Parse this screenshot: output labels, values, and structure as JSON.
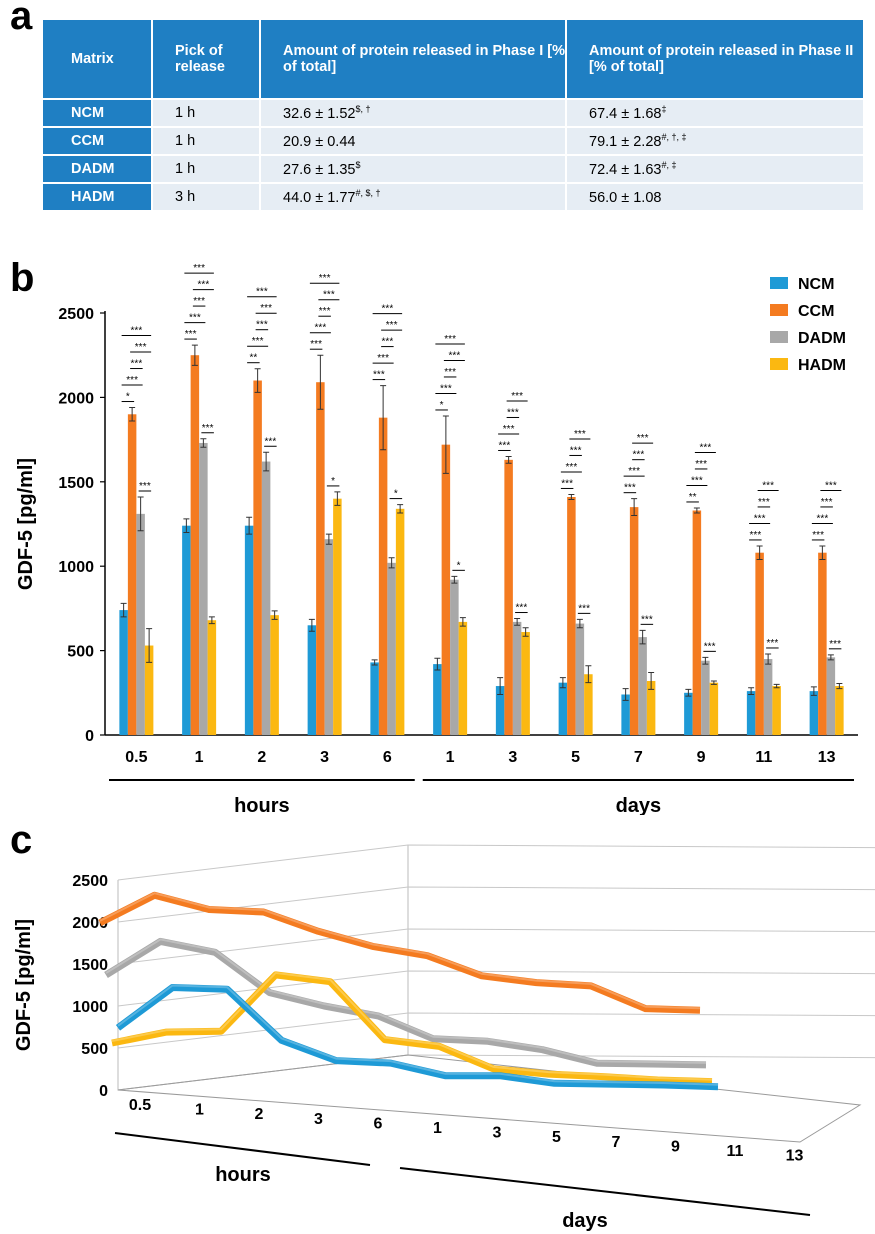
{
  "panels": {
    "a": "a",
    "b": "b",
    "c": "c"
  },
  "table": {
    "headers": [
      "Matrix",
      "Pick of release",
      "Amount of protein released in Phase I [% of total]",
      "Amount of protein released in Phase II [% of total]"
    ],
    "rows": [
      {
        "matrix": "NCM",
        "pick": "1 h",
        "phase1": "32.6 ± 1.52",
        "phase1_sup": "$, †",
        "phase2": "67.4 ± 1.68",
        "phase2_sup": "‡"
      },
      {
        "matrix": "CCM",
        "pick": "1 h",
        "phase1": "20.9 ± 0.44",
        "phase1_sup": "",
        "phase2": "79.1 ± 2.28",
        "phase2_sup": "#, †, ‡"
      },
      {
        "matrix": "DADM",
        "pick": "1 h",
        "phase1": "27.6 ± 1.35",
        "phase1_sup": "$",
        "phase2": "72.4 ± 1.63",
        "phase2_sup": "#, ‡"
      },
      {
        "matrix": "HADM",
        "pick": "3 h",
        "phase1": "44.0 ± 1.77",
        "phase1_sup": "#, $, †",
        "phase2": "56.0 ± 1.08",
        "phase2_sup": ""
      }
    ]
  },
  "colors": {
    "NCM": "#1e9ad6",
    "CCM": "#f47b20",
    "DADM": "#a8a8a8",
    "HADM": "#fbb811",
    "header": "#1f7fc3"
  },
  "chart_data": [
    {
      "type": "bar",
      "ylabel": "GDF-5 [pg/ml]",
      "ylim": [
        0,
        2500
      ],
      "yticks": [
        0,
        500,
        1000,
        1500,
        2000,
        2500
      ],
      "categories": [
        "0.5",
        "1",
        "2",
        "3",
        "6",
        "1",
        "3",
        "5",
        "7",
        "9",
        "11",
        "13"
      ],
      "groups": [
        {
          "label": "hours",
          "from": 0,
          "to": 4
        },
        {
          "label": "days",
          "from": 5,
          "to": 11
        }
      ],
      "legend_position": "top-right",
      "series": [
        {
          "name": "NCM",
          "values": [
            740,
            1240,
            1240,
            650,
            430,
            420,
            290,
            310,
            240,
            250,
            260,
            260
          ],
          "errors": [
            40,
            40,
            50,
            35,
            15,
            35,
            50,
            30,
            35,
            20,
            20,
            25
          ]
        },
        {
          "name": "CCM",
          "values": [
            1900,
            2250,
            2100,
            2090,
            1880,
            1720,
            1630,
            1410,
            1350,
            1330,
            1080,
            1080
          ],
          "errors": [
            40,
            60,
            70,
            160,
            190,
            170,
            20,
            15,
            50,
            15,
            40,
            40
          ]
        },
        {
          "name": "DADM",
          "values": [
            1310,
            1730,
            1620,
            1160,
            1020,
            920,
            670,
            660,
            580,
            440,
            450,
            460
          ],
          "errors": [
            100,
            25,
            55,
            30,
            30,
            20,
            20,
            25,
            40,
            20,
            30,
            15
          ]
        },
        {
          "name": "HADM",
          "values": [
            530,
            680,
            710,
            1400,
            1340,
            670,
            610,
            360,
            320,
            310,
            290,
            290
          ],
          "errors": [
            100,
            20,
            25,
            40,
            25,
            25,
            25,
            50,
            50,
            10,
            10,
            15
          ]
        }
      ],
      "significance": [
        [
          "*",
          "***",
          "***",
          "***",
          "***",
          "***"
        ],
        [
          "***",
          "***",
          "***",
          "***",
          "***",
          "***"
        ],
        [
          "**",
          "***",
          "***",
          "***",
          "***",
          "***"
        ],
        [
          "***",
          "***",
          "***",
          "***",
          "***",
          "*"
        ],
        [
          "***",
          "***",
          "***",
          "***",
          "***",
          "*"
        ],
        [
          "*",
          "***",
          "***",
          "***",
          "***",
          "*"
        ],
        [
          "***",
          "***",
          "***",
          "***",
          "***"
        ],
        [
          "***",
          "***",
          "***",
          "***",
          "***"
        ],
        [
          "***",
          "***",
          "***",
          "***",
          "***"
        ],
        [
          "**",
          "***",
          "***",
          "***",
          "***"
        ],
        [
          "***",
          "***",
          "***",
          "***",
          "***"
        ],
        [
          "***",
          "***",
          "***",
          "***",
          "***"
        ]
      ]
    },
    {
      "type": "line",
      "view": "3d-perspective",
      "ylabel": "GDF-5 [pg/ml]",
      "ylim": [
        0,
        2500
      ],
      "yticks": [
        0,
        500,
        1000,
        1500,
        2000,
        2500
      ],
      "categories": [
        "0.5",
        "1",
        "2",
        "3",
        "6",
        "1",
        "3",
        "5",
        "7",
        "9",
        "11",
        "13"
      ],
      "groups": [
        {
          "label": "hours",
          "from": 0,
          "to": 4
        },
        {
          "label": "days",
          "from": 5,
          "to": 11
        }
      ],
      "series": [
        {
          "name": "CCM",
          "values": [
            1900,
            2250,
            2100,
            2090,
            1880,
            1720,
            1630,
            1410,
            1350,
            1330,
            1080,
            1080
          ]
        },
        {
          "name": "DADM",
          "values": [
            1310,
            1730,
            1620,
            1160,
            1020,
            920,
            670,
            660,
            580,
            440,
            450,
            460
          ]
        },
        {
          "name": "HADM",
          "values": [
            530,
            680,
            710,
            1400,
            1340,
            670,
            610,
            360,
            320,
            310,
            290,
            290
          ]
        },
        {
          "name": "NCM",
          "values": [
            740,
            1240,
            1240,
            650,
            430,
            420,
            290,
            310,
            240,
            250,
            260,
            260
          ]
        }
      ]
    }
  ]
}
